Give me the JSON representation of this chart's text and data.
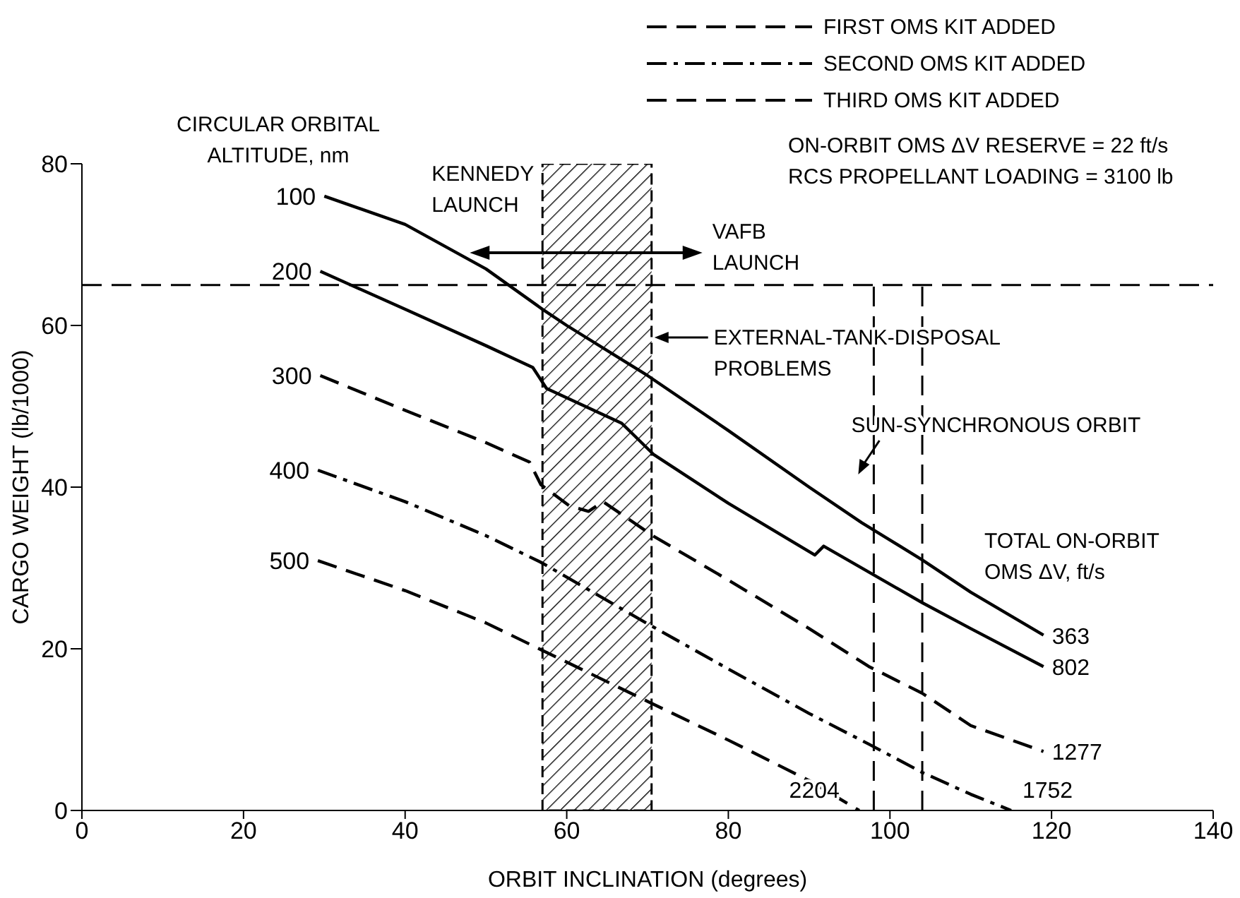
{
  "chart_data": {
    "type": "line",
    "xlabel": "ORBIT INCLINATION (degrees)",
    "ylabel": "CARGO WEIGHT (lb/1000)",
    "xlim": [
      0,
      140
    ],
    "xticks": [
      0,
      20,
      40,
      60,
      80,
      100,
      120,
      140
    ],
    "ylim": [
      0,
      80
    ],
    "yticks": [
      0,
      20,
      40,
      60,
      80
    ],
    "series": [
      {
        "name": "100",
        "color": "#000000",
        "line_style": "solid",
        "x": [
          30,
          40,
          50,
          57,
          60,
          70,
          80,
          90,
          96.5,
          104,
          110,
          119
        ],
        "values": [
          76,
          72.5,
          67,
          62,
          60,
          53.8,
          47,
          40,
          35.6,
          31,
          27,
          21.7
        ]
      },
      {
        "name": "200",
        "color": "#000000",
        "line_style": "solid",
        "x": [
          29.5,
          40,
          50,
          55.8,
          57.5,
          66.8,
          70.8,
          80,
          90.7,
          91.8,
          104,
          110,
          119
        ],
        "values": [
          66.7,
          62,
          57.5,
          54.8,
          52.2,
          47.9,
          44,
          38,
          31.6,
          32.7,
          25.7,
          22.5,
          17.8
        ]
      },
      {
        "name": "300",
        "color": "#000000",
        "line_style": "dashed",
        "x": [
          29.5,
          40,
          50,
          55.4,
          56.8,
          60.3,
          62.7,
          64.5,
          70.8,
          80,
          90,
          97.4,
          104,
          110,
          119
        ],
        "values": [
          53.8,
          49.5,
          45.5,
          43.1,
          40.3,
          37.7,
          37,
          38.2,
          33.9,
          28.5,
          22.5,
          17.8,
          14.5,
          10.5,
          7.3
        ]
      },
      {
        "name": "400",
        "color": "#000000",
        "line_style": "dotted",
        "x": [
          29.2,
          40,
          50,
          56.8,
          70,
          80,
          90,
          97.4,
          104,
          110,
          115
        ],
        "values": [
          42.1,
          38.2,
          34,
          30.7,
          23.1,
          17.5,
          12,
          8.2,
          4.7,
          2,
          0
        ]
      },
      {
        "name": "500",
        "color": "#000000",
        "line_style": "dashed",
        "x": [
          29.2,
          40,
          50,
          56.8,
          70,
          80,
          90,
          96.2
        ],
        "values": [
          30.9,
          27.2,
          23.2,
          19.9,
          13.5,
          8.7,
          3.7,
          0
        ]
      }
    ],
    "bands": [
      {
        "axis": "x",
        "from": 57,
        "to": 70.5,
        "label": "EXTERNAL-TANK-DISPOSAL\nPROBLEMS",
        "color": "#000000"
      }
    ],
    "ref_lines": [
      {
        "axis": "y",
        "value": 65,
        "color": "#000000",
        "line_style": "dashed"
      },
      {
        "axis": "x",
        "value": 98,
        "label": "SUN-SYNCHRONOUS ORBIT",
        "color": "#000000",
        "line_style": "dashed"
      },
      {
        "axis": "x",
        "value": 104,
        "color": "#000000",
        "line_style": "dashed"
      }
    ],
    "annotations": [
      "FIRST OMS KIT ADDED",
      "SECOND OMS KIT ADDED",
      "THIRD OMS KIT ADDED",
      "CIRCULAR ORBITAL\nALTITUDE, nm",
      "ON-ORBIT OMS ΔV RESERVE = 22 ft/s\nRCS PROPELLANT LOADING = 3100 lb",
      "TOTAL ON-ORBIT\nOMS ΔV, ft/s",
      {
        "text": "KENNEDY\nLAUNCH",
        "x": 48,
        "y": 69
      },
      {
        "text": "VAFB\nLAUNCH",
        "x": 70.5,
        "y": 69
      },
      {
        "text": "363",
        "x": 119,
        "y": 21.7
      },
      {
        "text": "802",
        "x": 119,
        "y": 17.8
      },
      {
        "text": "1277",
        "x": 119,
        "y": 7.3
      },
      {
        "text": "1752",
        "x": 115,
        "y": 0
      },
      {
        "text": "2204",
        "x": 96.2,
        "y": 0
      }
    ]
  }
}
